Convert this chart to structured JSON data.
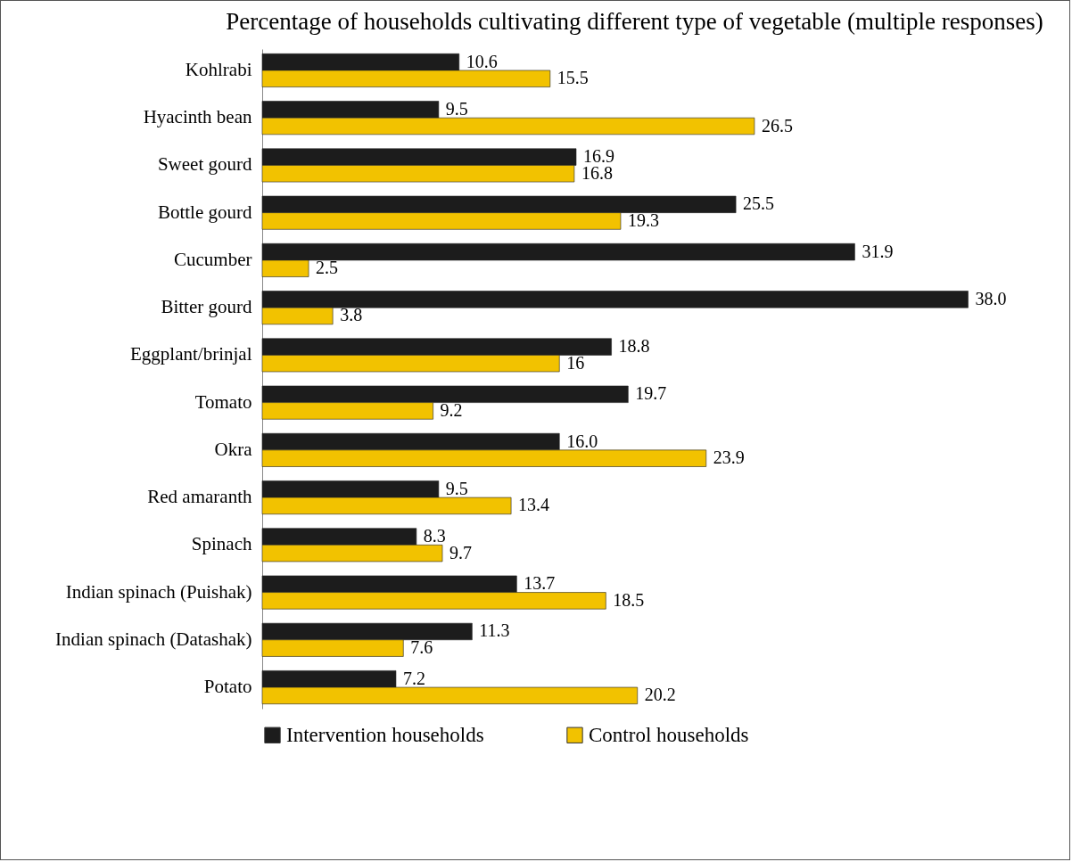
{
  "chart_data": {
    "type": "bar",
    "orientation": "horizontal",
    "title": "Percentage of households cultivating different type of vegetable (multiple responses)",
    "categories": [
      "Kohlrabi",
      "Hyacinth bean",
      "Sweet gourd",
      "Bottle gourd",
      "Cucumber",
      "Bitter gourd",
      "Eggplant/brinjal",
      "Tomato",
      "Okra",
      "Red amaranth",
      "Spinach",
      "Indian spinach (Puishak)",
      "Indian spinach (Datashak)",
      "Potato"
    ],
    "series": [
      {
        "name": "Intervention households",
        "color": "#1c1c1c",
        "values": [
          10.6,
          9.5,
          16.9,
          25.5,
          31.9,
          38.0,
          18.8,
          19.7,
          16.0,
          9.5,
          8.3,
          13.7,
          11.3,
          7.2
        ],
        "value_labels": [
          "10.6",
          "9.5",
          "16.9",
          "25.5",
          "31.9",
          "38.0",
          "18.8",
          "19.7",
          "16.0",
          "9.5",
          "8.3",
          "13.7",
          "11.3",
          "7.2"
        ]
      },
      {
        "name": "Control households",
        "color": "#f2c200",
        "values": [
          15.5,
          26.5,
          16.8,
          19.3,
          2.5,
          3.8,
          16,
          9.2,
          23.9,
          13.4,
          9.7,
          18.5,
          7.6,
          20.2
        ],
        "value_labels": [
          "15.5",
          "26.5",
          "16.8",
          "19.3",
          "2.5",
          "3.8",
          "16",
          "9.2",
          "23.9",
          "13.4",
          "9.7",
          "18.5",
          "7.6",
          "20.2"
        ]
      }
    ],
    "legend": "bottom",
    "grid": false
  }
}
